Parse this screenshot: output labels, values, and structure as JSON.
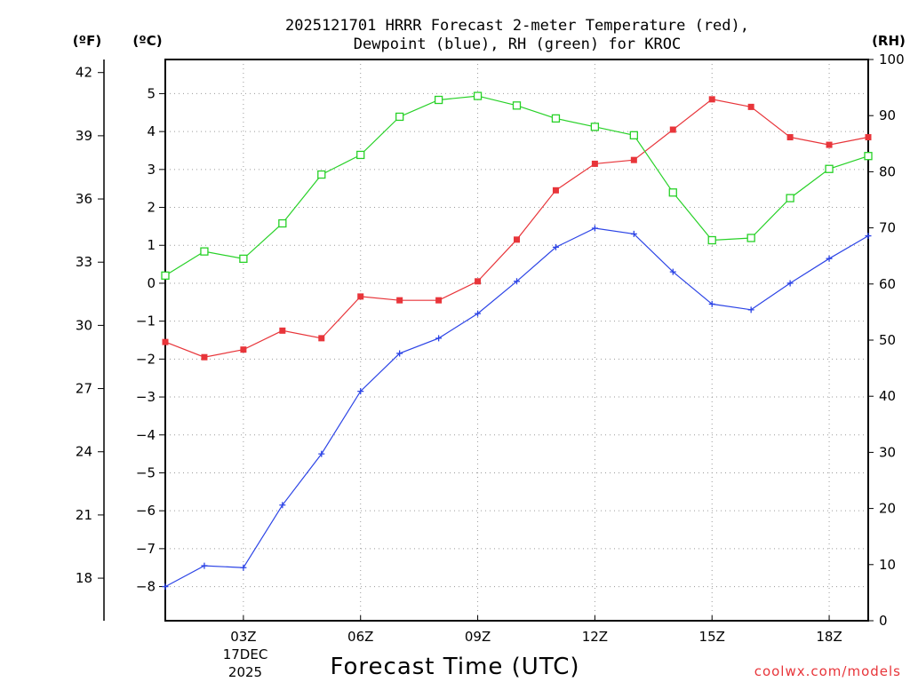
{
  "chart_data": {
    "type": "line",
    "title_line1": "2025121701 HRRR Forecast 2-meter Temperature (red),",
    "title_line2": "Dewpoint (blue), RH (green) for KROC",
    "xlabel": "Forecast Time (UTC)",
    "credit": "coolwx.com/models",
    "unit_f": "(ºF)",
    "unit_c": "(ºC)",
    "unit_rh": "(RH)",
    "x_date_line1": "17DEC",
    "x_date_line2": "2025",
    "x_hours": [
      1,
      2,
      3,
      4,
      5,
      6,
      7,
      8,
      9,
      10,
      11,
      12,
      13,
      14,
      15,
      16,
      17,
      18,
      19
    ],
    "xlim": [
      1,
      19
    ],
    "x_ticks": [
      {
        "hour": 3,
        "label": "03Z"
      },
      {
        "hour": 6,
        "label": "06Z"
      },
      {
        "hour": 9,
        "label": "09Z"
      },
      {
        "hour": 12,
        "label": "12Z"
      },
      {
        "hour": 15,
        "label": "15Z"
      },
      {
        "hour": 18,
        "label": "18Z"
      }
    ],
    "y_celsius": {
      "lim": [
        -8.9,
        5.9
      ],
      "ticks": [
        -8,
        -7,
        -6,
        -5,
        -4,
        -3,
        -2,
        -1,
        0,
        1,
        2,
        3,
        4,
        5
      ]
    },
    "y_fahrenheit": {
      "ticks": [
        18,
        21,
        24,
        27,
        30,
        33,
        36,
        39,
        42
      ]
    },
    "y_rh": {
      "lim": [
        0,
        100
      ],
      "ticks": [
        0,
        10,
        20,
        30,
        40,
        50,
        60,
        70,
        80,
        90,
        100
      ]
    },
    "colors": {
      "temperature": "#e8353a",
      "dewpoint": "#2c44e6",
      "rh": "#27d127",
      "credit": "#e8353a",
      "grid": "#9a9a9a"
    },
    "series": [
      {
        "name": "Temperature",
        "unit": "C",
        "color": "#e8353a",
        "marker": "filled-square",
        "values": [
          -1.55,
          -1.95,
          -1.75,
          -1.25,
          -1.45,
          -0.35,
          -0.45,
          -0.45,
          0.05,
          1.15,
          2.45,
          3.15,
          3.25,
          4.05,
          4.85,
          4.65,
          3.85,
          3.65,
          3.85
        ]
      },
      {
        "name": "Dewpoint",
        "unit": "C",
        "color": "#2c44e6",
        "marker": "plus",
        "values": [
          -8.0,
          -7.45,
          -7.5,
          -5.85,
          -4.5,
          -2.85,
          -1.85,
          -1.45,
          -0.8,
          0.05,
          0.95,
          1.45,
          1.3,
          0.3,
          -0.55,
          -0.7,
          0.0,
          0.65,
          1.25
        ]
      },
      {
        "name": "RH",
        "unit": "%",
        "color": "#27d127",
        "marker": "open-square",
        "values": [
          61.5,
          65.8,
          64.5,
          70.8,
          79.5,
          83.0,
          89.8,
          92.8,
          93.5,
          91.8,
          89.5,
          88.0,
          86.5,
          76.3,
          67.8,
          68.2,
          75.3,
          80.5,
          82.8
        ]
      }
    ]
  }
}
